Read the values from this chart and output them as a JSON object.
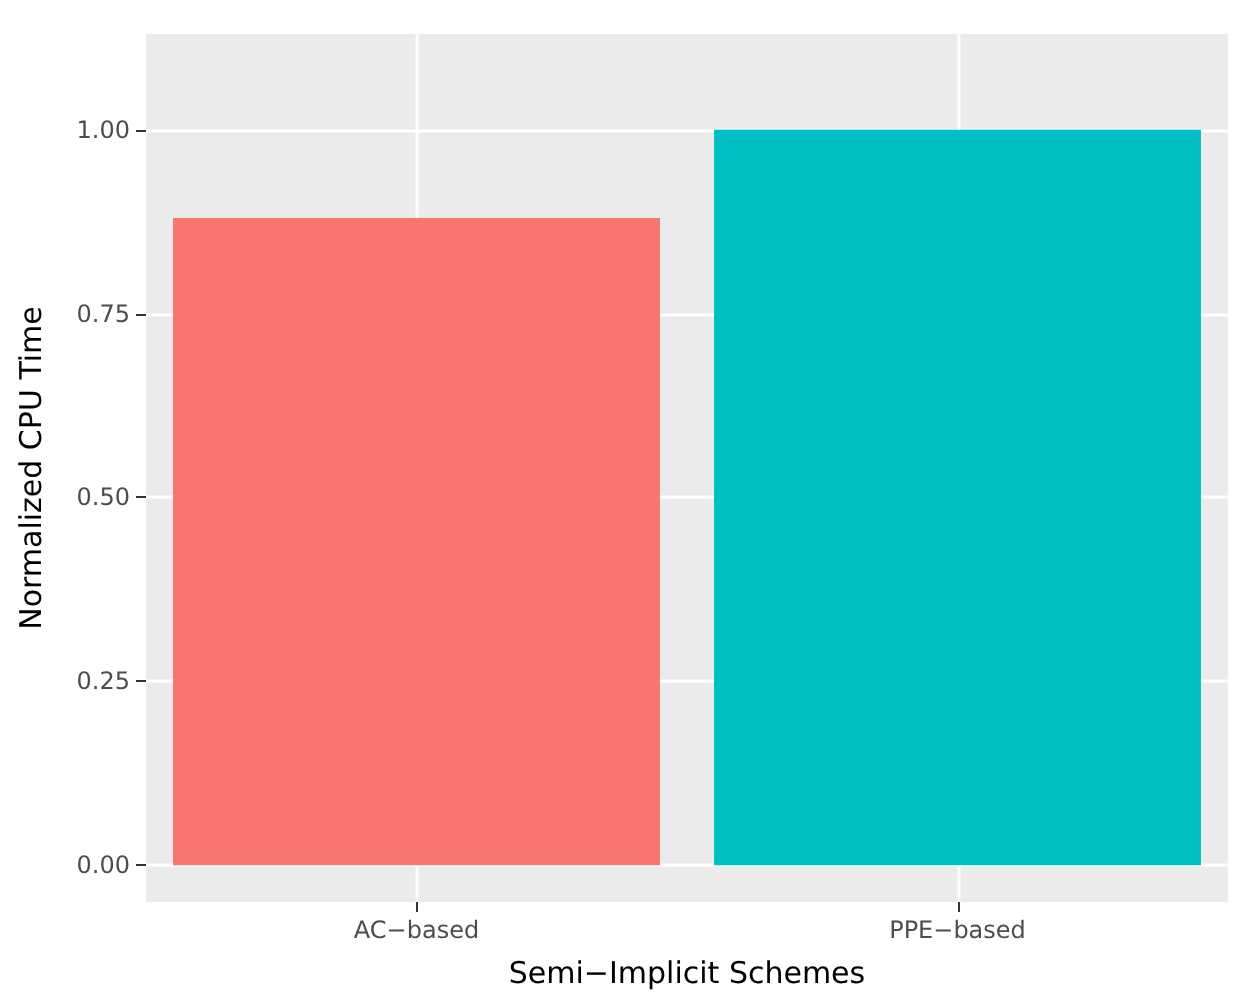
{
  "chart_data": {
    "type": "bar",
    "xlabel": "Semi−Implicit Schemes",
    "ylabel": "Normalized CPU Time",
    "categories": [
      "AC−based",
      "PPE−based"
    ],
    "values": [
      0.88,
      1.0
    ],
    "colors": [
      "#f8766d",
      "#00bfc4"
    ],
    "ylim": [
      -0.05,
      1.13
    ],
    "yticks": [
      {
        "value": 0,
        "label": "0.00"
      },
      {
        "value": 0.25,
        "label": "0.25"
      },
      {
        "value": 0.5,
        "label": "0.50"
      },
      {
        "value": 0.75,
        "label": "0.75"
      },
      {
        "value": 1,
        "label": "1.00"
      }
    ],
    "grid": true
  }
}
